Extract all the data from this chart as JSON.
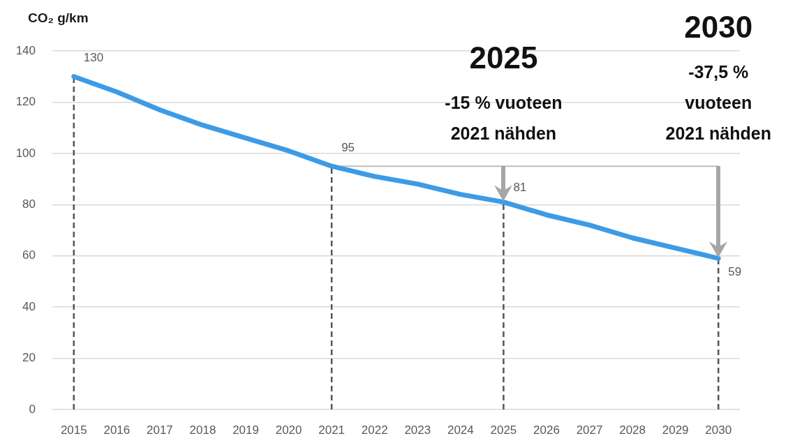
{
  "chart_data": {
    "type": "line",
    "ylabel": "CO₂ g/km",
    "categories": [
      "2015",
      "2016",
      "2017",
      "2018",
      "2019",
      "2020",
      "2021",
      "2022",
      "2023",
      "2024",
      "2025",
      "2026",
      "2027",
      "2028",
      "2029",
      "2030"
    ],
    "series": [
      {
        "color": "#3d9be6",
        "values": [
          130,
          124,
          117,
          111,
          106,
          101,
          95,
          91,
          88,
          84,
          81,
          76,
          72,
          67,
          63,
          59
        ],
        "value_labels": [
          "130",
          null,
          null,
          null,
          null,
          null,
          "95",
          null,
          null,
          null,
          "81",
          null,
          null,
          null,
          null,
          "59"
        ]
      }
    ],
    "ylim": [
      0,
      140
    ],
    "yticks": [
      0,
      20,
      40,
      60,
      80,
      100,
      120,
      140
    ],
    "grid": "y",
    "legend": false,
    "marker": "none",
    "line_style": "solid",
    "ref_lines": [
      {
        "axis": "x",
        "value": "2015",
        "color": "#555555",
        "line_style": "dashed"
      },
      {
        "axis": "x",
        "value": "2021",
        "color": "#555555",
        "line_style": "dashed"
      },
      {
        "axis": "x",
        "value": "2025",
        "color": "#555555",
        "line_style": "dashed"
      },
      {
        "axis": "x",
        "value": "2030",
        "color": "#555555",
        "line_style": "dashed"
      },
      {
        "axis": "y",
        "value": 95,
        "color": "#bfbfbf",
        "line_style": "solid"
      }
    ],
    "annotations": [
      {
        "text": "2025\n-15 % vuoteen\n2021 nähden",
        "x": "2025",
        "y": 95
      },
      {
        "text": "2030\n-37,5 %\nvuoteen\n2021 nähden",
        "x": "2030",
        "y": 95
      }
    ]
  }
}
